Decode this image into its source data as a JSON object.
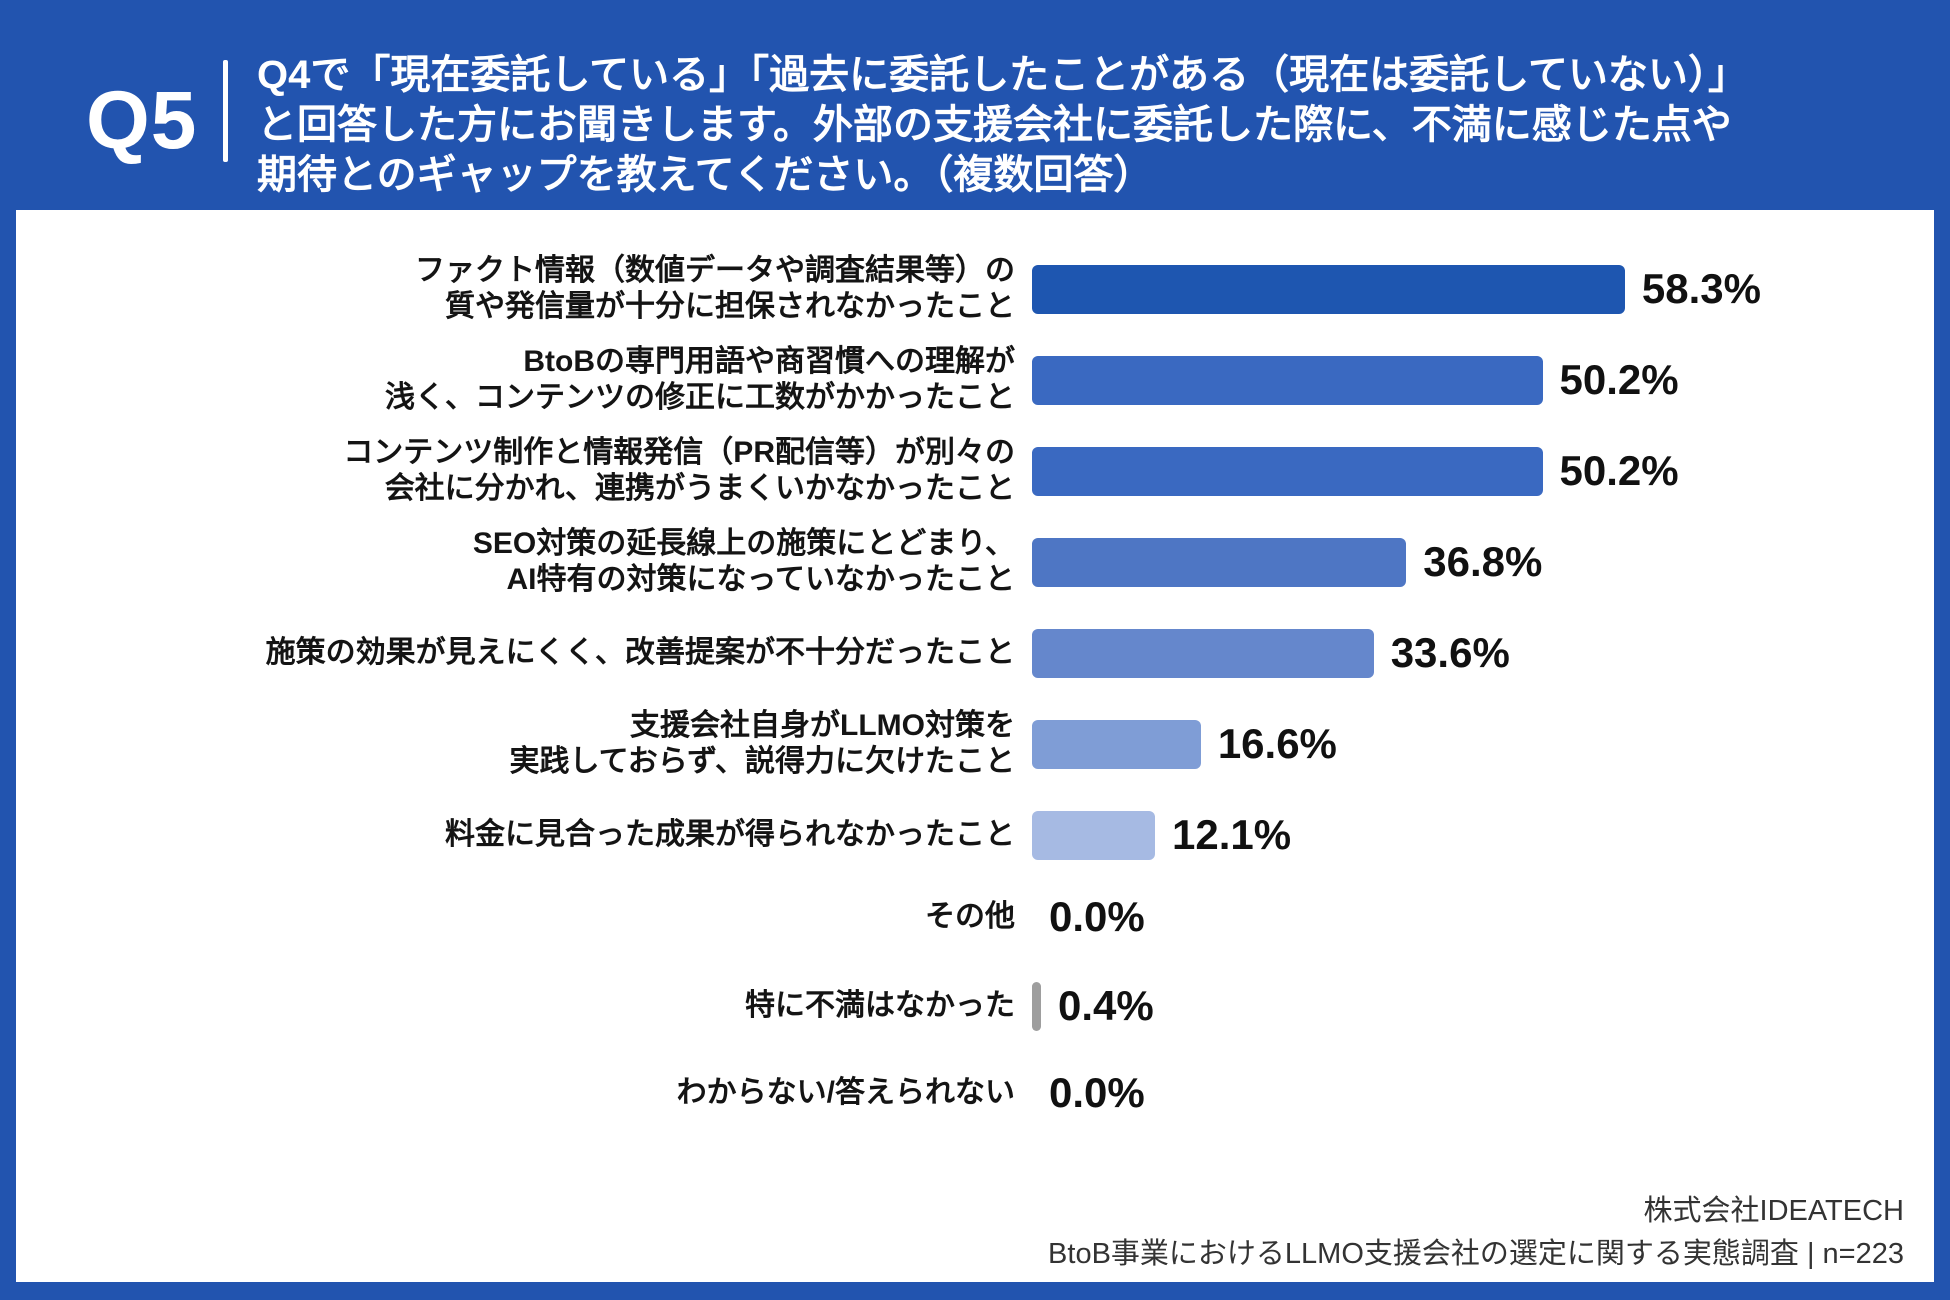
{
  "header": {
    "badge": "Q5",
    "question_lines": [
      "Q4で「現在委託している」「過去に委託したことがある（現在は委託していない）」",
      "と回答した方にお聞きします。外部の支援会社に委託した際に、不満に感じた点や",
      "期待とのギャップを教えてください。（複数回答）"
    ]
  },
  "chart_data": {
    "type": "bar",
    "orientation": "horizontal",
    "value_unit": "%",
    "xlim": [
      0,
      60
    ],
    "sample_size": "n=223",
    "categories": [
      "ファクト情報（数値データや調査結果等）の質や発信量が十分に担保されなかったこと",
      "BtoBの専門用語や商習慣への理解が浅く、コンテンツの修正に工数がかかったこと",
      "コンテンツ制作と情報発信（PR配信等）が別々の会社に分かれ、連携がうまくいかなかったこと",
      "SEO対策の延長線上の施策にとどまり、AI特有の対策になっていなかったこと",
      "施策の効果が見えにくく、改善提案が不十分だったこと",
      "支援会社自身がLLMO対策を実践しておらず、説得力に欠けたこと",
      "料金に見合った成果が得られなかったこと",
      "その他",
      "特に不満はなかった",
      "わからない/答えられない"
    ],
    "values": [
      58.3,
      50.2,
      50.2,
      36.8,
      33.6,
      16.6,
      12.1,
      0.0,
      0.4,
      0.0
    ],
    "rows": [
      {
        "label_lines": [
          "ファクト情報（数値データや調査結果等）の",
          "質や発信量が十分に担保されなかったこと"
        ],
        "value": 58.3,
        "value_label": "58.3%",
        "color": "#1E56B0"
      },
      {
        "label_lines": [
          "BtoBの専門用語や商習慣への理解が",
          "浅く、コンテンツの修正に工数がかかったこと"
        ],
        "value": 50.2,
        "value_label": "50.2%",
        "color": "#3A69C1"
      },
      {
        "label_lines": [
          "コンテンツ制作と情報発信（PR配信等）が別々の",
          "会社に分かれ、連携がうまくいかなかったこと"
        ],
        "value": 50.2,
        "value_label": "50.2%",
        "color": "#3A69C1"
      },
      {
        "label_lines": [
          "SEO対策の延長線上の施策にとどまり、",
          "AI特有の対策になっていなかったこと"
        ],
        "value": 36.8,
        "value_label": "36.8%",
        "color": "#4E76C4"
      },
      {
        "label_lines": [
          "施策の効果が見えにくく、改善提案が不十分だったこと"
        ],
        "value": 33.6,
        "value_label": "33.6%",
        "color": "#6587CC"
      },
      {
        "label_lines": [
          "支援会社自身がLLMO対策を",
          "実践しておらず、説得力に欠けたこと"
        ],
        "value": 16.6,
        "value_label": "16.6%",
        "color": "#7F9DD6"
      },
      {
        "label_lines": [
          "料金に見合った成果が得られなかったこと"
        ],
        "value": 12.1,
        "value_label": "12.1%",
        "color": "#A6BAE3"
      },
      {
        "label_lines": [
          "その他"
        ],
        "value": 0.0,
        "value_label": "0.0%",
        "color": "#9E9E9E"
      },
      {
        "label_lines": [
          "特に不満はなかった"
        ],
        "value": 0.4,
        "value_label": "0.4%",
        "color": "#9E9E9E"
      },
      {
        "label_lines": [
          "わからない/答えられない"
        ],
        "value": 0.0,
        "value_label": "0.0%",
        "color": "#9E9E9E"
      }
    ]
  },
  "footer": {
    "company": "株式会社IDEATECH",
    "source": "BtoB事業におけるLLMO支援会社の選定に関する実態調査 | n=223"
  },
  "colors": {
    "page_blue": "#2254AF",
    "bar_darkest": "#1E56B0",
    "bar_lightest": "#A6BAE3",
    "zero_bar_gray": "#9E9E9E",
    "label_text": "#141414",
    "footer_text": "#333333"
  }
}
